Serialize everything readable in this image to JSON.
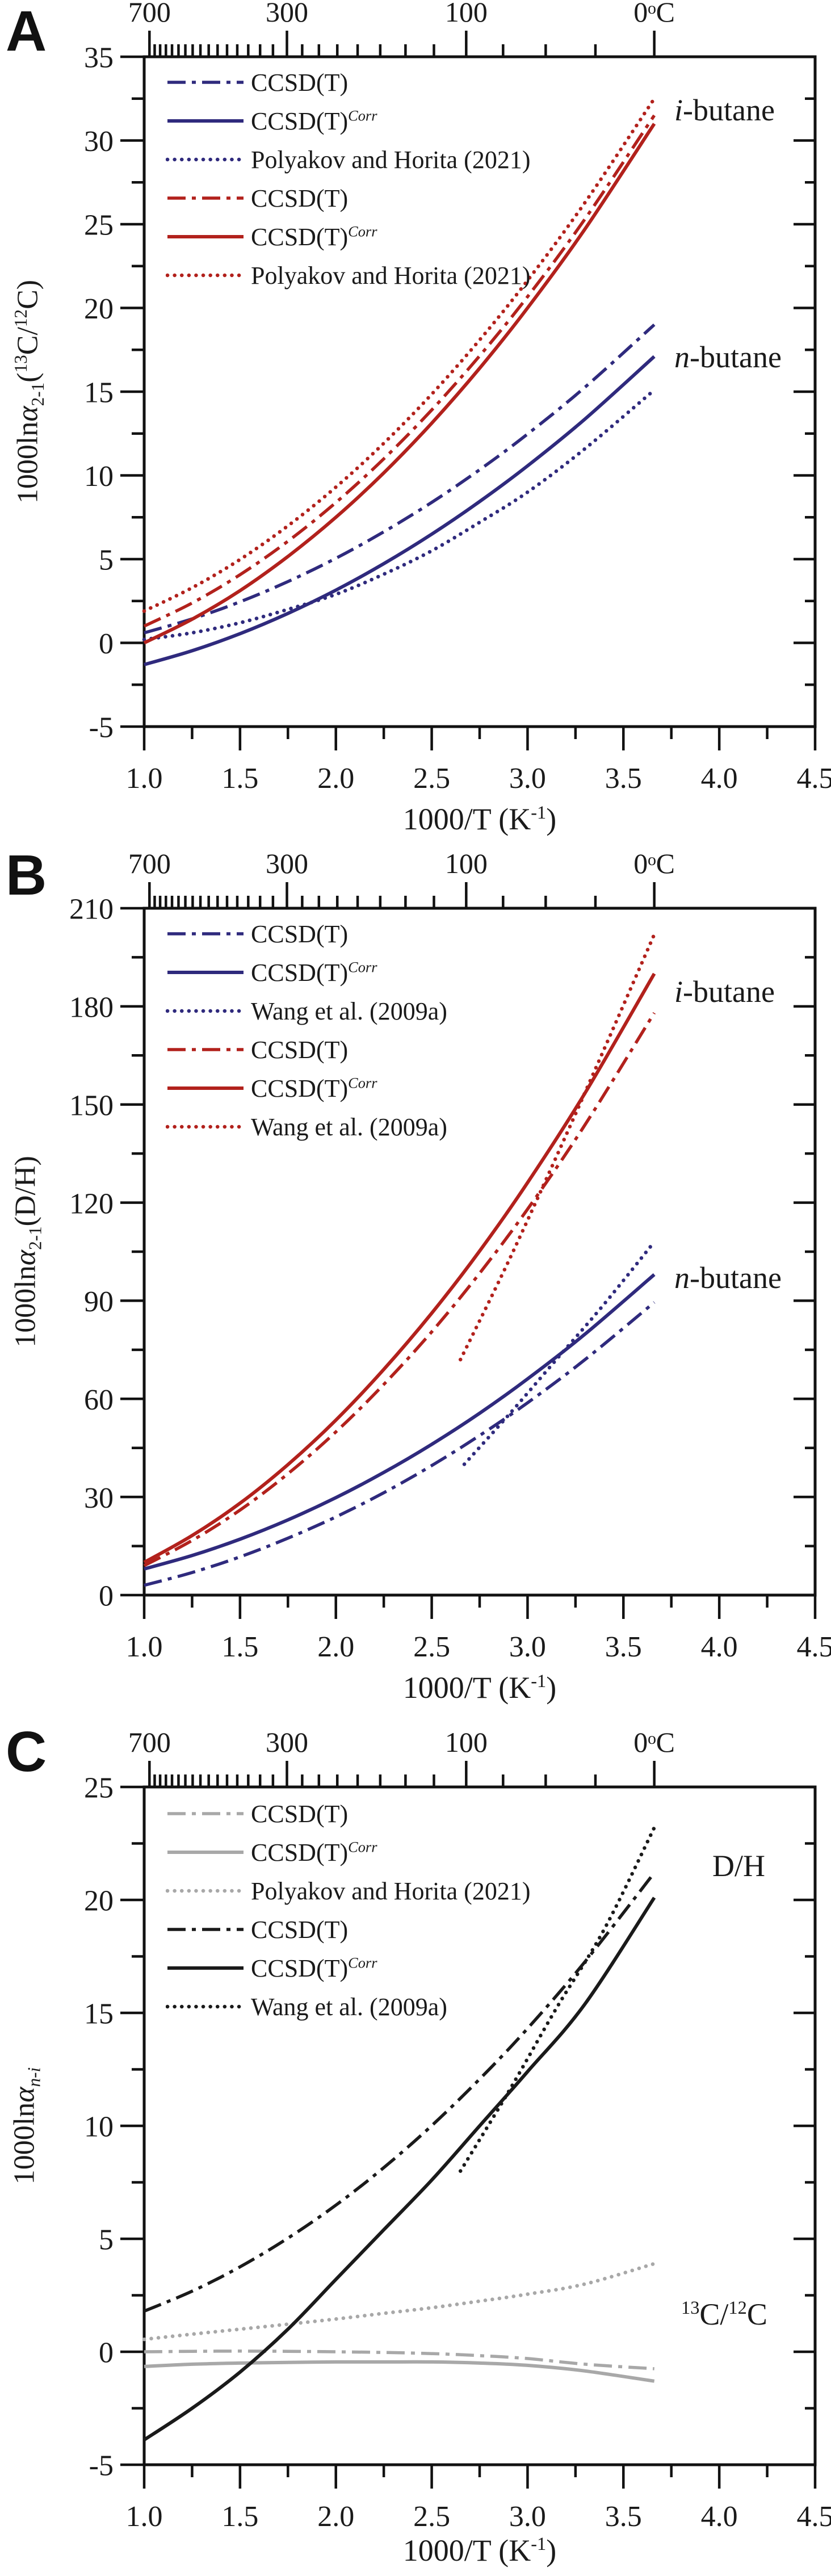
{
  "figure": {
    "background": "#ffffff",
    "colors": {
      "navy": "#2f2a7d",
      "red": "#b2211c",
      "gray": "#a8a8a8",
      "black": "#1a1a1a"
    },
    "panels": [
      {
        "letter": "A",
        "ylabel_parts": {
          "pre": "1000ln",
          "alpha": "α",
          "sub": "2-1",
          "after": "(",
          "sup1": "13",
          "mid": "C/",
          "sup2": "12",
          "end": "C)"
        },
        "xlabel_parts": {
          "pre": "1000/T (K",
          "sup": "-1",
          "end": ")"
        },
        "annotations": {
          "top": {
            "italic": "i",
            "rest": "-butane"
          },
          "bottom": {
            "italic": "n",
            "rest": "-butane"
          }
        },
        "legend": {
          "items": [
            {
              "color": "navy",
              "style": "dashdot",
              "label": "CCSD(T)",
              "sup": ""
            },
            {
              "color": "navy",
              "style": "solid",
              "label": "CCSD(T)",
              "sup": "Corr"
            },
            {
              "color": "navy",
              "style": "dotted",
              "label": "Polyakov and Horita (2021)",
              "sup": ""
            },
            {
              "color": "red",
              "style": "dashdot",
              "label": "CCSD(T)",
              "sup": ""
            },
            {
              "color": "red",
              "style": "solid",
              "label": "CCSD(T)",
              "sup": "Corr"
            },
            {
              "color": "red",
              "style": "dotted",
              "label": "Polyakov and Horita (2021)",
              "sup": ""
            }
          ]
        }
      },
      {
        "letter": "B",
        "ylabel_parts": {
          "pre": "1000ln",
          "alpha": "α",
          "sub": "2-1",
          "after": "(D/H)",
          "sup1": "",
          "mid": "",
          "sup2": "",
          "end": ""
        },
        "xlabel_parts": {
          "pre": "1000/T (K",
          "sup": "-1",
          "end": ")"
        },
        "annotations": {
          "top": {
            "italic": "i",
            "rest": "-butane"
          },
          "bottom": {
            "italic": "n",
            "rest": "-butane"
          }
        },
        "legend": {
          "items": [
            {
              "color": "navy",
              "style": "dashdot",
              "label": "CCSD(T)",
              "sup": ""
            },
            {
              "color": "navy",
              "style": "solid",
              "label": "CCSD(T)",
              "sup": "Corr"
            },
            {
              "color": "navy",
              "style": "dotted",
              "label": "Wang et al. (2009a)",
              "sup": ""
            },
            {
              "color": "red",
              "style": "dashdot",
              "label": "CCSD(T)",
              "sup": ""
            },
            {
              "color": "red",
              "style": "solid",
              "label": "CCSD(T)",
              "sup": "Corr"
            },
            {
              "color": "red",
              "style": "dotted",
              "label": "Wang et al. (2009a)",
              "sup": ""
            }
          ]
        }
      },
      {
        "letter": "C",
        "ylabel_parts": {
          "pre": "1000ln",
          "alpha": "α",
          "sub": "n-i",
          "after": "",
          "sup1": "",
          "mid": "",
          "sup2": "",
          "end": ""
        },
        "xlabel_parts": {
          "pre": "1000/T (K",
          "sup": "-1",
          "end": ")"
        },
        "annotations": {
          "top": {
            "plain": "D/H"
          },
          "bottom": {
            "sup1": "13",
            "mid": "C/",
            "sup2": "12",
            "end": "C"
          }
        },
        "legend": {
          "items": [
            {
              "color": "gray",
              "style": "dashdot",
              "label": "CCSD(T)",
              "sup": ""
            },
            {
              "color": "gray",
              "style": "solid",
              "label": "CCSD(T)",
              "sup": "Corr"
            },
            {
              "color": "gray",
              "style": "dotted",
              "label": "Polyakov and Horita (2021)",
              "sup": ""
            },
            {
              "color": "black",
              "style": "dashdot",
              "label": "CCSD(T)",
              "sup": ""
            },
            {
              "color": "black",
              "style": "solid",
              "label": "CCSD(T)",
              "sup": "Corr"
            },
            {
              "color": "black",
              "style": "dotted",
              "label": "Wang et al. (2009a)",
              "sup": ""
            }
          ]
        }
      }
    ]
  },
  "chart_data": [
    {
      "panel": "A",
      "type": "line",
      "title": "",
      "xlabel": "1000/T (K-1)",
      "ylabel": "1000ln alpha 2-1 (13C/12C)",
      "xlim": [
        1.0,
        4.5
      ],
      "ylim": [
        -5,
        35
      ],
      "x_major_step": 0.5,
      "x_minor_step": 0.25,
      "y_major_step": 5,
      "y_minor_step": 2.5,
      "grid": false,
      "legend_position": "upper-left",
      "top_axis": {
        "unit": "degC",
        "majors": [
          {
            "T": 700,
            "label": "700"
          },
          {
            "T": 300,
            "label": "300"
          },
          {
            "T": 100,
            "label": "100"
          },
          {
            "T": 0,
            "label": "0ᵒC"
          }
        ],
        "minors": [
          675,
          650,
          625,
          600,
          575,
          550,
          525,
          500,
          475,
          450,
          425,
          400,
          375,
          350,
          325,
          275,
          250,
          225,
          200,
          175,
          150,
          125,
          75,
          50,
          25
        ]
      },
      "annotations": [
        "i-butane",
        "n-butane"
      ],
      "series": [
        {
          "name": "n-butane CCSD(T)",
          "color": "navy",
          "style": "dashdot",
          "x": [
            1.0,
            1.25,
            1.5,
            1.75,
            2.0,
            2.25,
            2.5,
            2.75,
            3.0,
            3.3,
            3.661
          ],
          "y": [
            0.6,
            1.43,
            2.45,
            3.66,
            5.05,
            6.63,
            8.39,
            10.34,
            12.47,
            15.27,
            19.0
          ]
        },
        {
          "name": "n-butane CCSD(T)Corr",
          "color": "navy",
          "style": "solid",
          "x": [
            1.0,
            1.25,
            1.5,
            1.75,
            2.0,
            2.25,
            2.5,
            2.75,
            3.0,
            3.3,
            3.661
          ],
          "y": [
            -1.3,
            -0.47,
            0.55,
            1.76,
            3.15,
            4.73,
            6.49,
            8.44,
            10.57,
            13.37,
            17.1
          ]
        },
        {
          "name": "n-butane Polyakov and Horita (2021)",
          "color": "navy",
          "style": "dotted",
          "x": [
            1.0,
            1.25,
            1.5,
            1.75,
            2.0,
            2.25,
            2.5,
            2.75,
            3.0,
            3.3,
            3.661
          ],
          "y": [
            0.2,
            0.6,
            1.2,
            2.0,
            2.9,
            4.1,
            5.5,
            7.2,
            9.0,
            11.6,
            15.1
          ]
        },
        {
          "name": "i-butane CCSD(T)",
          "color": "red",
          "style": "dashdot",
          "x": [
            1.0,
            1.25,
            1.5,
            1.75,
            2.0,
            2.25,
            2.5,
            2.75,
            3.0,
            3.3,
            3.661
          ],
          "y": [
            1.0,
            2.38,
            4.07,
            6.07,
            8.38,
            10.99,
            13.91,
            17.14,
            20.67,
            25.32,
            31.5
          ]
        },
        {
          "name": "i-butane CCSD(T)Corr",
          "color": "red",
          "style": "solid",
          "x": [
            1.0,
            1.25,
            1.5,
            1.75,
            2.0,
            2.25,
            2.5,
            2.75,
            3.0,
            3.3,
            3.661
          ],
          "y": [
            0.0,
            1.41,
            3.12,
            5.16,
            7.5,
            10.15,
            13.12,
            16.4,
            20.0,
            24.72,
            31.0
          ]
        },
        {
          "name": "i-butane Polyakov and Horita (2021)",
          "color": "red",
          "style": "dotted",
          "x": [
            1.0,
            1.25,
            1.5,
            1.75,
            2.0,
            2.25,
            2.5,
            2.75,
            3.0,
            3.3,
            3.661
          ],
          "y": [
            1.9,
            3.29,
            4.98,
            6.99,
            9.3,
            11.92,
            14.85,
            18.09,
            21.64,
            26.3,
            32.5
          ]
        }
      ]
    },
    {
      "panel": "B",
      "type": "line",
      "title": "",
      "xlabel": "1000/T (K-1)",
      "ylabel": "1000ln alpha 2-1 (D/H)",
      "xlim": [
        1.0,
        4.5
      ],
      "ylim": [
        0,
        210
      ],
      "x_major_step": 0.5,
      "x_minor_step": 0.25,
      "y_major_step": 30,
      "y_minor_step": 15,
      "grid": false,
      "legend_position": "upper-left",
      "top_axis": {
        "unit": "degC",
        "majors": [
          {
            "T": 700,
            "label": "700"
          },
          {
            "T": 300,
            "label": "300"
          },
          {
            "T": 100,
            "label": "100"
          },
          {
            "T": 0,
            "label": "0ᵒC"
          }
        ],
        "minors": [
          675,
          650,
          625,
          600,
          575,
          550,
          525,
          500,
          475,
          450,
          425,
          400,
          375,
          350,
          325,
          275,
          250,
          225,
          200,
          175,
          150,
          125,
          75,
          50,
          25
        ]
      },
      "annotations": [
        "i-butane",
        "n-butane"
      ],
      "series": [
        {
          "name": "n-butane CCSD(T)",
          "color": "navy",
          "style": "dashdot",
          "x": [
            1.0,
            1.25,
            1.5,
            1.75,
            2.0,
            2.25,
            2.5,
            2.75,
            3.0,
            3.3,
            3.661
          ],
          "y": [
            3,
            6.9,
            11.7,
            17.4,
            23.9,
            31.3,
            39.6,
            48.8,
            58.8,
            72.0,
            89.5
          ]
        },
        {
          "name": "n-butane CCSD(T)Corr",
          "color": "navy",
          "style": "solid",
          "x": [
            1.0,
            1.25,
            1.5,
            1.75,
            2.0,
            2.25,
            2.5,
            2.75,
            3.0,
            3.3,
            3.661
          ],
          "y": [
            8,
            12.1,
            17.1,
            23.0,
            29.8,
            37.5,
            46.1,
            55.6,
            66.1,
            79.8,
            98
          ]
        },
        {
          "name": "n-butane Wang et al. (2009a)",
          "color": "navy",
          "style": "dotted",
          "x": [
            2.67,
            2.9,
            3.15,
            3.4,
            3.661
          ],
          "y": [
            40,
            55,
            72,
            89,
            108
          ]
        },
        {
          "name": "i-butane CCSD(T)",
          "color": "red",
          "style": "dashdot",
          "x": [
            1.0,
            1.25,
            1.5,
            1.75,
            2.0,
            2.25,
            2.5,
            2.75,
            3.0,
            3.3,
            3.661
          ],
          "y": [
            9,
            16.7,
            26.0,
            37.1,
            49.9,
            64.4,
            80.5,
            98.4,
            118.0,
            143.8,
            178
          ]
        },
        {
          "name": "i-butane CCSD(T)Corr",
          "color": "red",
          "style": "solid",
          "x": [
            1.0,
            1.25,
            1.5,
            1.75,
            2.0,
            2.25,
            2.5,
            2.75,
            3.0,
            3.3,
            3.661
          ],
          "y": [
            10,
            18.2,
            28.1,
            39.9,
            53.5,
            69.0,
            86.2,
            105.2,
            126.1,
            153.5,
            190
          ]
        },
        {
          "name": "i-butane Wang et al. (2009a)",
          "color": "red",
          "style": "dotted",
          "x": [
            2.65,
            2.9,
            3.15,
            3.4,
            3.661
          ],
          "y": [
            72,
            102,
            134,
            167,
            202
          ]
        }
      ]
    },
    {
      "panel": "C",
      "type": "line",
      "title": "",
      "xlabel": "1000/T (K-1)",
      "ylabel": "1000ln alpha n-i",
      "xlim": [
        1.0,
        4.5
      ],
      "ylim": [
        -5,
        25
      ],
      "x_major_step": 0.5,
      "x_minor_step": 0.25,
      "y_major_step": 5,
      "y_minor_step": 2.5,
      "grid": false,
      "legend_position": "upper-left",
      "top_axis": {
        "unit": "degC",
        "majors": [
          {
            "T": 700,
            "label": "700"
          },
          {
            "T": 300,
            "label": "300"
          },
          {
            "T": 100,
            "label": "100"
          },
          {
            "T": 0,
            "label": "0ᵒC"
          }
        ],
        "minors": [
          675,
          650,
          625,
          600,
          575,
          550,
          525,
          500,
          475,
          450,
          425,
          400,
          375,
          350,
          325,
          275,
          250,
          225,
          200,
          175,
          150,
          125,
          75,
          50,
          25
        ]
      },
      "annotations": [
        "D/H",
        "13C/12C"
      ],
      "series": [
        {
          "name": "13C/12C CCSD(T)",
          "color": "gray",
          "style": "dashdot",
          "x": [
            1.0,
            1.25,
            1.5,
            1.75,
            2.0,
            2.25,
            2.5,
            2.75,
            3.0,
            3.3,
            3.661
          ],
          "y": [
            0.0,
            0.02,
            0.03,
            0.02,
            0.0,
            -0.03,
            -0.08,
            -0.17,
            -0.3,
            -0.55,
            -0.75
          ]
        },
        {
          "name": "13C/12C CCSD(T)Corr",
          "color": "gray",
          "style": "solid",
          "x": [
            1.0,
            1.25,
            1.5,
            1.75,
            2.0,
            2.25,
            2.5,
            2.75,
            3.0,
            3.3,
            3.661
          ],
          "y": [
            -0.65,
            -0.55,
            -0.5,
            -0.47,
            -0.45,
            -0.45,
            -0.45,
            -0.5,
            -0.6,
            -0.85,
            -1.3
          ]
        },
        {
          "name": "13C/12C Polyakov and Horita (2021)",
          "color": "gray",
          "style": "dotted",
          "x": [
            1.0,
            1.25,
            1.5,
            1.75,
            2.0,
            2.25,
            2.5,
            2.75,
            3.0,
            3.3,
            3.661
          ],
          "y": [
            0.55,
            0.78,
            1.0,
            1.22,
            1.45,
            1.7,
            1.95,
            2.24,
            2.55,
            3.0,
            3.9
          ]
        },
        {
          "name": "D/H CCSD(T)",
          "color": "black",
          "style": "dashdot",
          "x": [
            1.0,
            1.25,
            1.5,
            1.75,
            2.0,
            2.25,
            2.5,
            2.75,
            3.0,
            3.3,
            3.661
          ],
          "y": [
            1.8,
            2.68,
            3.76,
            5.03,
            6.49,
            8.15,
            10.01,
            12.07,
            14.31,
            17.27,
            21.2
          ]
        },
        {
          "name": "D/H CCSD(T)Corr",
          "color": "black",
          "style": "solid",
          "x": [
            1.0,
            1.25,
            1.5,
            1.75,
            2.0,
            2.25,
            2.5,
            2.75,
            3.0,
            3.3,
            3.661
          ],
          "y": [
            -3.9,
            -2.5,
            -0.9,
            1.0,
            3.2,
            5.4,
            7.6,
            10.0,
            12.4,
            15.4,
            20.1
          ]
        },
        {
          "name": "D/H Wang et al. (2009a)",
          "color": "black",
          "style": "dotted",
          "x": [
            2.65,
            2.9,
            3.15,
            3.4,
            3.661
          ],
          "y": [
            8.0,
            11.5,
            15.2,
            18.7,
            23.2
          ]
        }
      ]
    }
  ]
}
